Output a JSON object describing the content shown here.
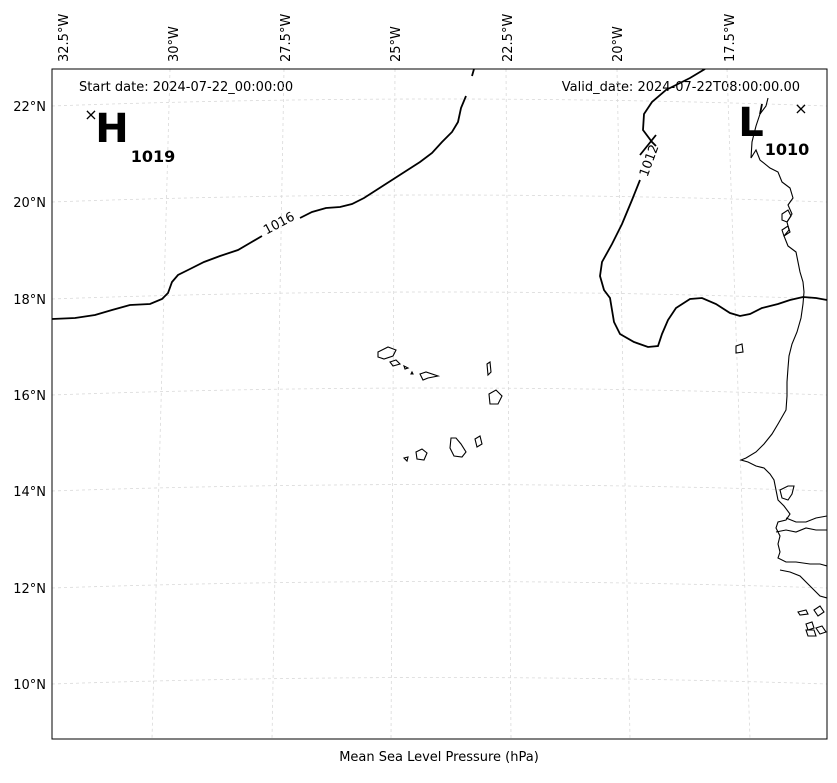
{
  "header": {
    "start_date": "Start date: 2024-07-22_00:00:00",
    "valid_date": "Valid_date: 2024-07-22T08:00:00.00"
  },
  "footer": {
    "caption": "Mean Sea Level Pressure (hPa)"
  },
  "longitude_ticks": [
    "32.5°W",
    "30°W",
    "27.5°W",
    "25°W",
    "22.5°W",
    "20°W",
    "17.5°W"
  ],
  "latitude_ticks": [
    "22°N",
    "20°N",
    "18°N",
    "16°N",
    "14°N",
    "12°N",
    "10°N"
  ],
  "pressure_centers": {
    "high": {
      "letter": "H",
      "value": "1019",
      "marker": "×"
    },
    "low": {
      "letter": "L",
      "value": "1010",
      "marker": "×"
    }
  },
  "isobars": [
    {
      "value": 1016,
      "label": "1016"
    },
    {
      "value": 1012,
      "label": "1012"
    }
  ]
}
